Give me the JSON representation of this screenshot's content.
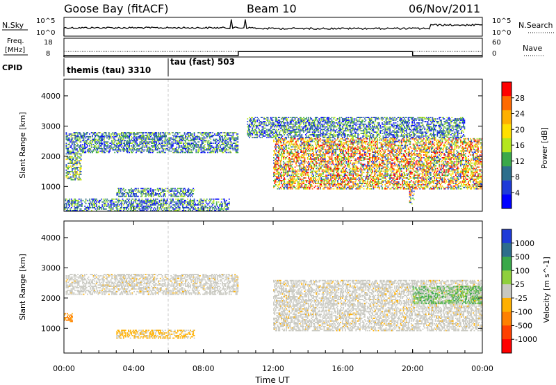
{
  "header": {
    "station": "Goose Bay (fitACF)",
    "beam": "Beam 10",
    "date": "06/Nov/2011"
  },
  "strips": {
    "nsky_label": "N.Sky",
    "nsearch_label": "N.Search",
    "left_ticks": [
      "10^5",
      "10^0"
    ],
    "right_ticks": [
      "10^5",
      "10^0"
    ],
    "freq_label_top": "Freq.",
    "freq_label_bottom": "[MHz]",
    "freq_ticks": [
      "18",
      "8"
    ],
    "nave_label": "Nave",
    "nave_ticks": [
      "60",
      "0"
    ],
    "cpid_label": "CPID",
    "cpid_segments": [
      "themis (tau) 3310",
      "tau (fast) 503"
    ],
    "freq_levels": [
      {
        "start": 0,
        "end": 10,
        "level": 8
      },
      {
        "start": 10,
        "end": 20,
        "level": 10.5
      },
      {
        "start": 20,
        "end": 24,
        "level": 8
      }
    ]
  },
  "x_axis": {
    "label": "Time UT",
    "ticks": [
      "00:00",
      "04:00",
      "08:00",
      "12:00",
      "16:00",
      "20:00",
      "00:00"
    ]
  },
  "chart_data": [
    {
      "type": "heatmap",
      "quantity": "power",
      "ylabel": "Slant Range [km]",
      "xlabel": "",
      "x_range_hours": [
        0,
        24
      ],
      "ylim": [
        180,
        4550
      ],
      "yticks": [
        1000,
        2000,
        3000,
        4000
      ],
      "colorbar": {
        "label": "Power [dB]",
        "ticks": [
          "28",
          "24",
          "20",
          "16",
          "12",
          "8",
          "4"
        ],
        "colors": [
          "#ff0000",
          "#ff6a00",
          "#ffb000",
          "#ffe000",
          "#b5e61d",
          "#3aa84a",
          "#2d6e8c",
          "#1e3bd8",
          "#0000ff"
        ]
      },
      "regions": [
        {
          "t0": 0.1,
          "t1": 10.0,
          "r0": 2100,
          "r1": 2800,
          "intensity": "low"
        },
        {
          "t0": 0.1,
          "t1": 1.0,
          "r0": 1200,
          "r1": 2100,
          "intensity": "mid"
        },
        {
          "t0": 3.0,
          "t1": 7.5,
          "r0": 650,
          "r1": 950,
          "intensity": "low"
        },
        {
          "t0": 0.0,
          "t1": 9.5,
          "r0": 180,
          "r1": 600,
          "intensity": "low"
        },
        {
          "t0": 12.0,
          "t1": 24.0,
          "r0": 900,
          "r1": 2600,
          "intensity": "high"
        },
        {
          "t0": 10.5,
          "t1": 23.0,
          "r0": 2600,
          "r1": 3300,
          "intensity": "low"
        },
        {
          "t0": 19.8,
          "t1": 20.1,
          "r0": 400,
          "r1": 1000,
          "intensity": "high"
        }
      ]
    },
    {
      "type": "heatmap",
      "quantity": "velocity",
      "ylabel": "Slant Range [km]",
      "xlabel": "Time UT",
      "x_range_hours": [
        0,
        24
      ],
      "ylim": [
        180,
        4550
      ],
      "yticks": [
        1000,
        2000,
        3000,
        4000
      ],
      "colorbar": {
        "label": "Velocity [m s^-1]",
        "ticks": [
          "1000",
          "500",
          "100",
          "25",
          "-25",
          "-100",
          "-500",
          "-1000"
        ],
        "colors": [
          "#1e3bd8",
          "#2d6e8c",
          "#3aa84a",
          "#8fcf3c",
          "#c8c8c0",
          "#ffb000",
          "#ff8000",
          "#ff4000",
          "#ff0000"
        ]
      },
      "regions": [
        {
          "t0": 0.1,
          "t1": 10.0,
          "r0": 2100,
          "r1": 2800,
          "value": "near-zero"
        },
        {
          "t0": 0.0,
          "t1": 0.5,
          "r0": 1200,
          "r1": 1500,
          "value": "negative"
        },
        {
          "t0": 3.0,
          "t1": 7.5,
          "r0": 650,
          "r1": 950,
          "value": "slightly-negative"
        },
        {
          "t0": 12.0,
          "t1": 24.0,
          "r0": 900,
          "r1": 2600,
          "value": "near-zero"
        },
        {
          "t0": 20.0,
          "t1": 24.0,
          "r0": 1800,
          "r1": 2400,
          "value": "positive"
        }
      ]
    }
  ]
}
